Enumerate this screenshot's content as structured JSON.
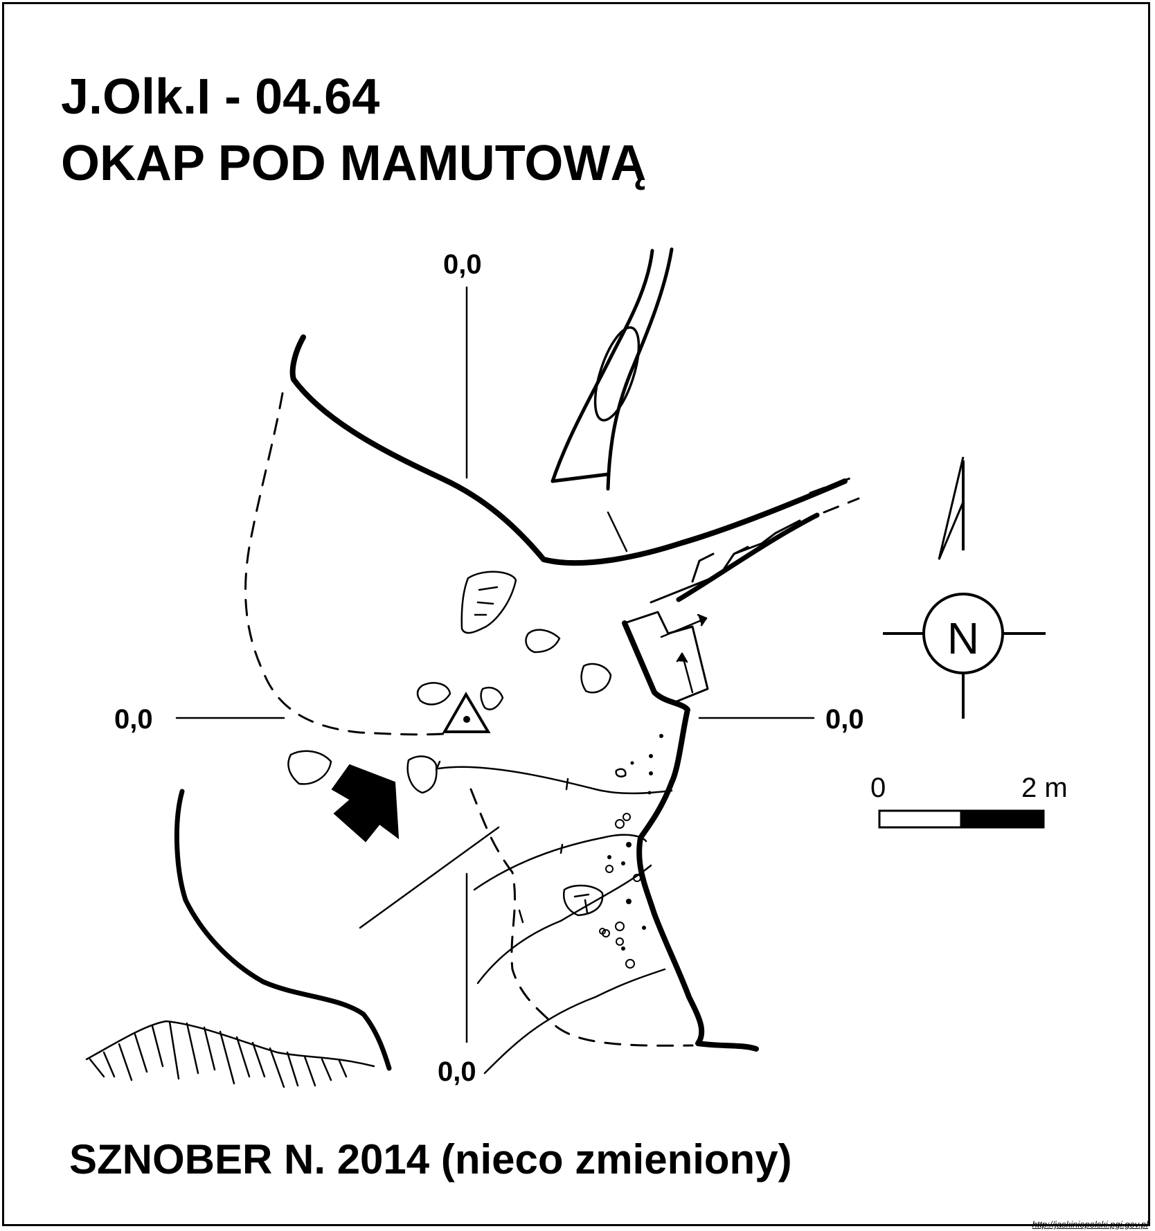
{
  "header": {
    "code": "J.Olk.I - 04.64",
    "name": "OKAP POD MAMUTOWĄ"
  },
  "axes": {
    "top": "0,0",
    "bottom": "0,0",
    "left": "0,0",
    "right": "0,0"
  },
  "north_arrow": {
    "letter": "N"
  },
  "scale_bar": {
    "start_label": "0",
    "end_label": "2 m"
  },
  "footer": {
    "author": "SZNOBER N. 2014 (nieco zmieniony)",
    "url": "http://jaskiniepolski.pgi.gov.pl"
  },
  "icons": {
    "entrance": "entrance-arrow-icon",
    "survey_point": "survey-point-triangle-icon",
    "north": "north-arrow-icon"
  }
}
